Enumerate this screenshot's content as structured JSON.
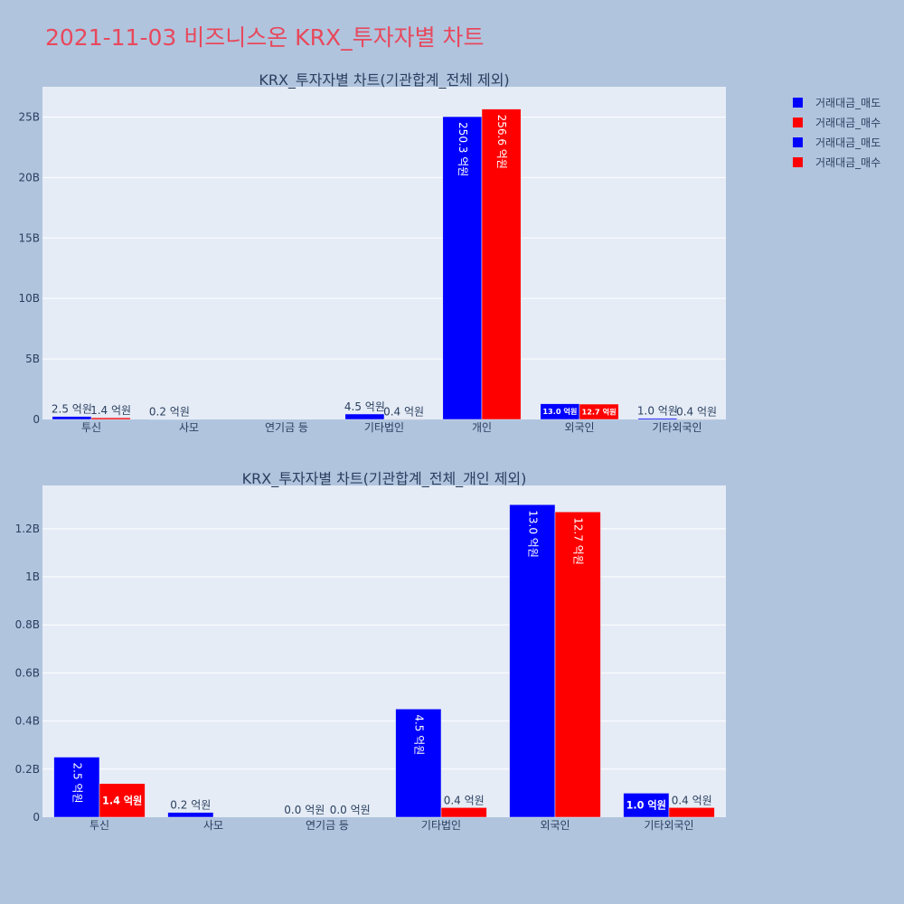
{
  "page": {
    "title": "2021-11-03 비즈니스온 KRX_투자자별 차트"
  },
  "legend": [
    {
      "name": "거래대금_매도",
      "color": "#0000ff"
    },
    {
      "name": "거래대금_매수",
      "color": "#ff0000"
    },
    {
      "name": "거래대금_매도",
      "color": "#0000ff"
    },
    {
      "name": "거래대금_매수",
      "color": "#ff0000"
    }
  ],
  "chart_data": [
    {
      "type": "bar",
      "title": "KRX_투자자별 차트(기관합계_전체 제외)",
      "categories": [
        "투신",
        "사모",
        "연기금 등",
        "기타법인",
        "개인",
        "외국인",
        "기타외국인"
      ],
      "series": [
        {
          "name": "거래대금_매도",
          "color": "#0000ff",
          "values": [
            250000000,
            20000000,
            0,
            450000000,
            25030000000,
            1300000000,
            100000000
          ],
          "labels": [
            "2.5 억원",
            "0.2 억원",
            "",
            "4.5 억원",
            "250.3 억원",
            "13.0 억원",
            "1.0 억원"
          ]
        },
        {
          "name": "거래대금_매수",
          "color": "#ff0000",
          "values": [
            140000000,
            0,
            0,
            40000000,
            25660000000,
            1270000000,
            40000000
          ],
          "labels": [
            "1.4 억원",
            "",
            "",
            "0.4 억원",
            "256.6 억원",
            "12.7 억원",
            "0.4 억원"
          ]
        }
      ],
      "ylim": [
        0,
        27500000000
      ],
      "yticks": [
        0,
        5000000000,
        10000000000,
        15000000000,
        20000000000,
        25000000000
      ],
      "ytick_labels": [
        "0",
        "5B",
        "10B",
        "15B",
        "20B",
        "25B"
      ],
      "grid": true
    },
    {
      "type": "bar",
      "title": "KRX_투자자별 차트(기관합계_전체_개인 제외)",
      "categories": [
        "투신",
        "사모",
        "연기금 등",
        "기타법인",
        "외국인",
        "기타외국인"
      ],
      "series": [
        {
          "name": "거래대금_매도",
          "color": "#0000ff",
          "values": [
            250000000,
            20000000,
            0,
            450000000,
            1300000000,
            100000000
          ],
          "labels": [
            "2.5 억원",
            "0.2 억원",
            "0.0 억원",
            "4.5 억원",
            "13.0 억원",
            "1.0 억원"
          ]
        },
        {
          "name": "거래대금_매수",
          "color": "#ff0000",
          "values": [
            140000000,
            0,
            0,
            40000000,
            1270000000,
            40000000
          ],
          "labels": [
            "1.4 억원",
            "",
            "0.0 억원",
            "0.4 억원",
            "12.7 억원",
            "0.4 억원"
          ]
        }
      ],
      "ylim": [
        0,
        1380000000
      ],
      "yticks": [
        0,
        200000000,
        400000000,
        600000000,
        800000000,
        1000000000,
        1200000000
      ],
      "ytick_labels": [
        "0",
        "0.2B",
        "0.4B",
        "0.6B",
        "0.8B",
        "1B",
        "1.2B"
      ],
      "grid": true
    }
  ]
}
